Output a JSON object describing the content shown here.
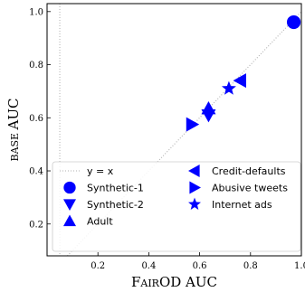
{
  "chart_data": {
    "type": "scatter",
    "xlabel": "FairOD AUC",
    "ylabel": "base AUC",
    "xlim": [
      0.0,
      1.0
    ],
    "ylim": [
      0.08,
      1.03
    ],
    "x_ticks": [
      0.2,
      0.4,
      0.6,
      0.8,
      1.0
    ],
    "y_ticks": [
      0.2,
      0.4,
      0.6,
      0.8,
      1.0
    ],
    "reference_lines": [
      {
        "name": "y = x",
        "style": "dotted",
        "color": "#b0b0b0"
      },
      {
        "name": "",
        "orientation": "vertical",
        "x": 0.05,
        "style": "dotted",
        "color": "#b0b0b0"
      }
    ],
    "series": [
      {
        "name": "Synthetic-1",
        "marker": "circle",
        "color": "#0000ff",
        "x": [
          0.97
        ],
        "y": [
          0.96
        ]
      },
      {
        "name": "Synthetic-2",
        "marker": "triangle-down",
        "color": "#0000ff",
        "x": [
          0.635
        ],
        "y": [
          0.61
        ]
      },
      {
        "name": "Adult",
        "marker": "triangle-up",
        "color": "#0000ff",
        "x": [
          0.635
        ],
        "y": [
          0.635
        ]
      },
      {
        "name": "Credit-defaults",
        "marker": "triangle-left",
        "color": "#0000ff",
        "x": [
          0.76
        ],
        "y": [
          0.74
        ]
      },
      {
        "name": "Abusive tweets",
        "marker": "triangle-right",
        "color": "#0000ff",
        "x": [
          0.57
        ],
        "y": [
          0.575
        ]
      },
      {
        "name": "Internet ads",
        "marker": "star",
        "color": "#0000ff",
        "x": [
          0.715
        ],
        "y": [
          0.71
        ]
      }
    ],
    "legend": {
      "position": "lower-left",
      "entries": [
        "y = x",
        "Synthetic-1",
        "Synthetic-2",
        "Adult",
        "Credit-defaults",
        "Abusive tweets",
        "Internet ads"
      ]
    },
    "grid": false
  }
}
